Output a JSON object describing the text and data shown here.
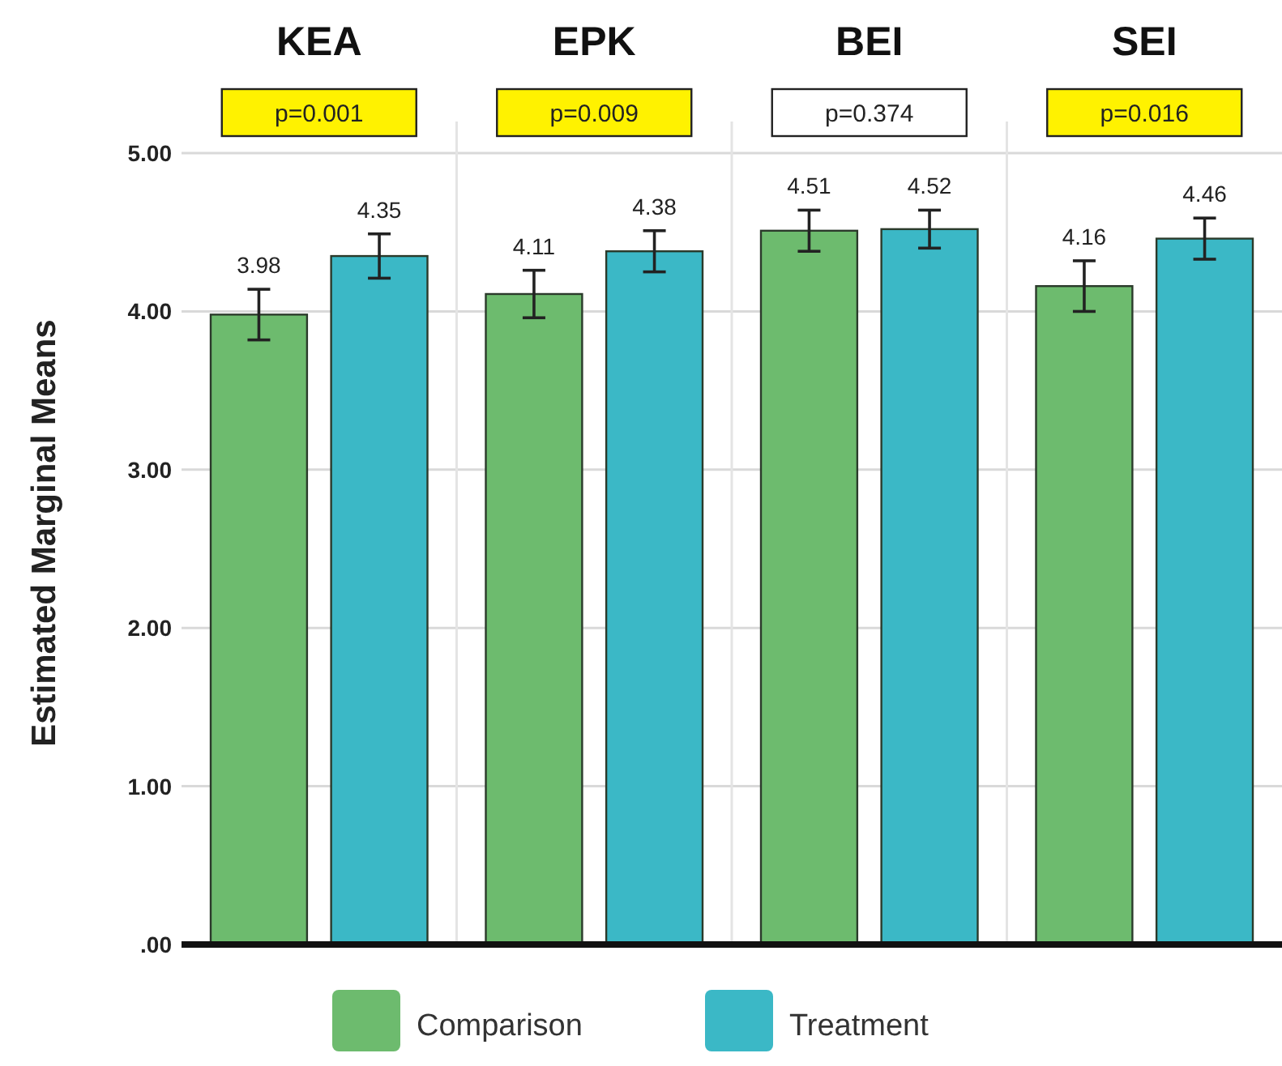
{
  "chart_data": {
    "type": "bar",
    "ylabel": "Estimated Marginal Means",
    "categories": [
      "KEA",
      "EPK",
      "BEI",
      "SEI"
    ],
    "series": [
      {
        "name": "Comparison",
        "color": "#6dbb6e",
        "values": [
          3.98,
          4.11,
          4.51,
          4.16
        ],
        "errors": [
          0.16,
          0.15,
          0.13,
          0.16
        ]
      },
      {
        "name": "Treatment",
        "color": "#3bb8c6",
        "values": [
          4.35,
          4.38,
          4.52,
          4.46
        ],
        "errors": [
          0.14,
          0.13,
          0.12,
          0.13
        ]
      }
    ],
    "ylim": [
      0,
      5.2
    ],
    "yticks": [
      {
        "value": 0,
        "label": ".00"
      },
      {
        "value": 1,
        "label": "1.00"
      },
      {
        "value": 2,
        "label": "2.00"
      },
      {
        "value": 3,
        "label": "3.00"
      },
      {
        "value": 4,
        "label": "4.00"
      },
      {
        "value": 5,
        "label": "5.00"
      }
    ],
    "grid": "y",
    "legend": "bottom",
    "data_labels": true,
    "annotations": [
      "p=0.001",
      "p=0.009",
      "p=0.374",
      "p=0.016"
    ]
  }
}
